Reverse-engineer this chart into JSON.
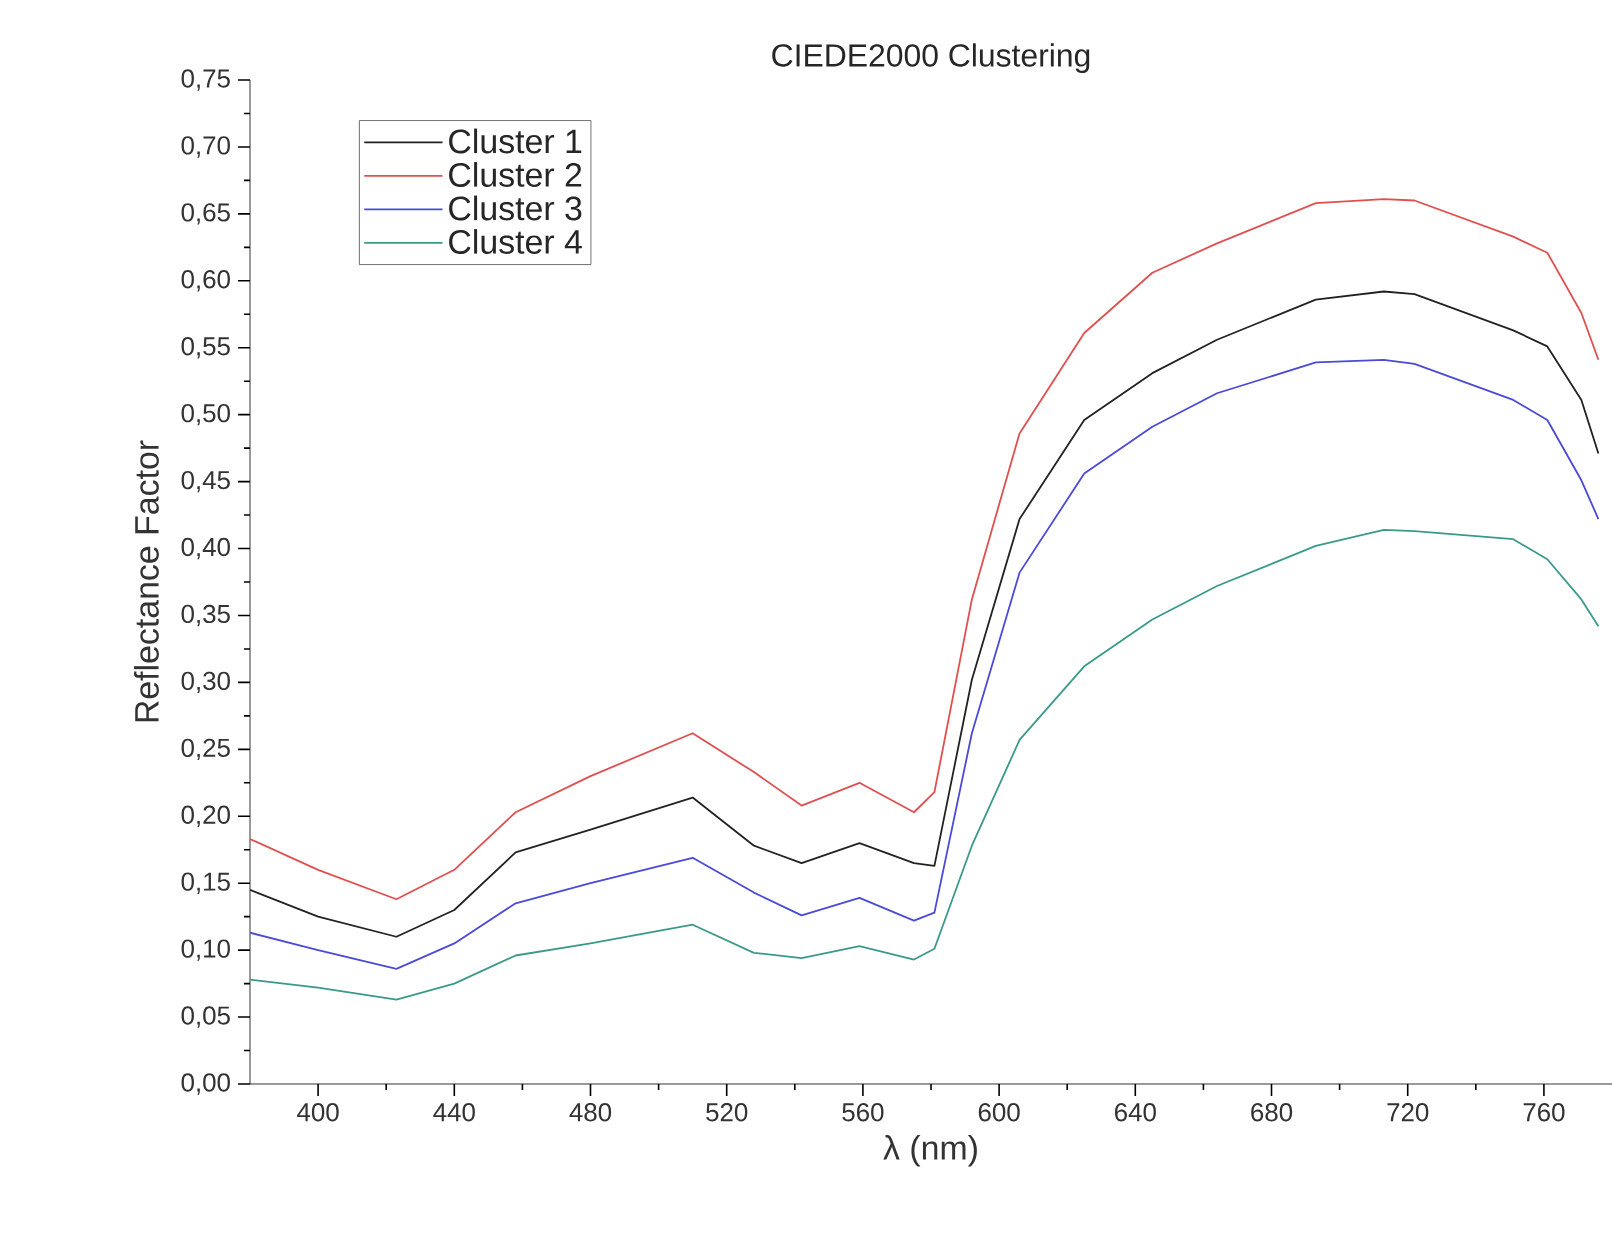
{
  "chart_data": {
    "type": "line",
    "title": "CIEDE2000 Clustering",
    "xlabel": "λ (nm)",
    "ylabel": "Reflectance Factor",
    "x": [
      380,
      400,
      423,
      440,
      458,
      480,
      510,
      528,
      542,
      559,
      575,
      581,
      592,
      606,
      625,
      645,
      664,
      693,
      713,
      722,
      751,
      761,
      771,
      776
    ],
    "series": [
      {
        "name": "Cluster 1",
        "color": "#222222",
        "values": [
          0.145,
          0.125,
          0.11,
          0.13,
          0.173,
          0.19,
          0.214,
          0.178,
          0.165,
          0.18,
          0.165,
          0.163,
          0.302,
          0.422,
          0.496,
          0.531,
          0.556,
          0.586,
          0.592,
          0.59,
          0.563,
          0.551,
          0.511,
          0.471
        ]
      },
      {
        "name": "Cluster 2",
        "color": "#e05050",
        "values": [
          0.183,
          0.16,
          0.138,
          0.16,
          0.203,
          0.23,
          0.262,
          0.233,
          0.208,
          0.225,
          0.203,
          0.218,
          0.362,
          0.486,
          0.561,
          0.606,
          0.628,
          0.658,
          0.661,
          0.66,
          0.633,
          0.621,
          0.576,
          0.541
        ]
      },
      {
        "name": "Cluster 3",
        "color": "#4a4ad8",
        "values": [
          0.113,
          0.1,
          0.086,
          0.105,
          0.135,
          0.15,
          0.169,
          0.143,
          0.126,
          0.139,
          0.122,
          0.128,
          0.262,
          0.382,
          0.456,
          0.491,
          0.516,
          0.539,
          0.541,
          0.538,
          0.511,
          0.496,
          0.451,
          0.422
        ]
      },
      {
        "name": "Cluster 4",
        "color": "#3a9a8a",
        "values": [
          0.078,
          0.072,
          0.063,
          0.075,
          0.096,
          0.105,
          0.119,
          0.098,
          0.094,
          0.103,
          0.093,
          0.101,
          0.178,
          0.257,
          0.312,
          0.347,
          0.372,
          0.402,
          0.414,
          0.413,
          0.407,
          0.392,
          0.362,
          0.342
        ]
      }
    ],
    "xlim": [
      380,
      780
    ],
    "ylim": [
      0,
      0.75
    ],
    "xticks": [
      400,
      440,
      480,
      520,
      560,
      600,
      640,
      680,
      720,
      760
    ],
    "yticks": [
      {
        "value": 0,
        "label": "0,00"
      },
      {
        "value": 0.05,
        "label": "0,05"
      },
      {
        "value": 0.1,
        "label": "0,10"
      },
      {
        "value": 0.15,
        "label": "0,15"
      },
      {
        "value": 0.2,
        "label": "0,20"
      },
      {
        "value": 0.25,
        "label": "0,25"
      },
      {
        "value": 0.3,
        "label": "0,30"
      },
      {
        "value": 0.35,
        "label": "0,35"
      },
      {
        "value": 0.4,
        "label": "0,40"
      },
      {
        "value": 0.45,
        "label": "0,45"
      },
      {
        "value": 0.5,
        "label": "0,50"
      },
      {
        "value": 0.55,
        "label": "0,55"
      },
      {
        "value": 0.6,
        "label": "0,60"
      },
      {
        "value": 0.65,
        "label": "0,65"
      },
      {
        "value": 0.7,
        "label": "0,70"
      },
      {
        "value": 0.75,
        "label": "0,75"
      }
    ],
    "legend": "top left",
    "grid": false,
    "marker": "none",
    "line_style": "solid"
  }
}
